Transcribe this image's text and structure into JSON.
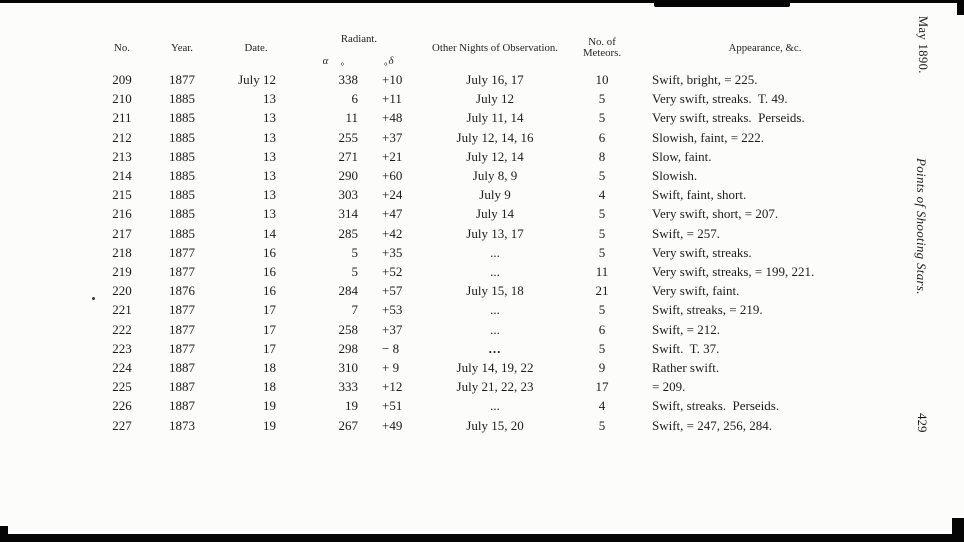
{
  "page": {
    "margin_date": "May 1890.",
    "margin_title": "Points of Shooting Stars.",
    "page_number": "429"
  },
  "table": {
    "degree_symbol": "°",
    "headers": {
      "no": "No.",
      "year": "Year.",
      "date": "Date.",
      "radiant": "Radiant.",
      "alpha": "α",
      "delta": "δ",
      "nights": "Other Nights of Observation.",
      "meteors_1": "No. of",
      "meteors_2": "Meteors.",
      "appearance": "Appearance, &c."
    },
    "rows": [
      {
        "no": "209",
        "year": "1877",
        "date": "July 12",
        "alpha": "338",
        "delta": "+10",
        "nights": "July 16, 17",
        "meteors": "10",
        "appearance": "Swift, bright, = 225.",
        "degree_marks": true
      },
      {
        "no": "210",
        "year": "1885",
        "date": "13",
        "alpha": "6",
        "delta": "+11",
        "nights": "July 12",
        "meteors": "5",
        "appearance": "Very swift, streaks.  T. 49."
      },
      {
        "no": "211",
        "year": "1885",
        "date": "13",
        "alpha": "11",
        "delta": "+48",
        "nights": "July 11, 14",
        "meteors": "5",
        "appearance": "Very swift, streaks.  Perseids."
      },
      {
        "no": "212",
        "year": "1885",
        "date": "13",
        "alpha": "255",
        "delta": "+37",
        "nights": "July 12, 14, 16",
        "meteors": "6",
        "appearance": "Slowish, faint, = 222."
      },
      {
        "no": "213",
        "year": "1885",
        "date": "13",
        "alpha": "271",
        "delta": "+21",
        "nights": "July 12, 14",
        "meteors": "8",
        "appearance": "Slow, faint."
      },
      {
        "no": "214",
        "year": "1885",
        "date": "13",
        "alpha": "290",
        "delta": "+60",
        "nights": "July 8, 9",
        "meteors": "5",
        "appearance": "Slowish."
      },
      {
        "no": "215",
        "year": "1885",
        "date": "13",
        "alpha": "303",
        "delta": "+24",
        "nights": "July 9",
        "meteors": "4",
        "appearance": "Swift, faint, short."
      },
      {
        "no": "216",
        "year": "1885",
        "date": "13",
        "alpha": "314",
        "delta": "+47",
        "nights": "July 14",
        "meteors": "5",
        "appearance": "Very swift, short, = 207."
      },
      {
        "no": "217",
        "year": "1885",
        "date": "14",
        "alpha": "285",
        "delta": "+42",
        "nights": "July 13, 17",
        "meteors": "5",
        "appearance": "Swift, = 257."
      },
      {
        "no": "218",
        "year": "1877",
        "date": "16",
        "alpha": "5",
        "delta": "+35",
        "nights": "...",
        "meteors": "5",
        "appearance": "Very swift, streaks."
      },
      {
        "no": "219",
        "year": "1877",
        "date": "16",
        "alpha": "5",
        "delta": "+52",
        "nights": "...",
        "meteors": "11",
        "appearance": "Very swift, streaks, = 199, 221."
      },
      {
        "no": "220",
        "year": "1876",
        "date": "16",
        "alpha": "284",
        "delta": "+57",
        "nights": "July 15, 18",
        "meteors": "21",
        "appearance": "Very swift, faint."
      },
      {
        "no": "221",
        "year": "1877",
        "date": "17",
        "alpha": "7",
        "delta": "+53",
        "nights": "...",
        "meteors": "5",
        "appearance": "Swift, streaks, = 219."
      },
      {
        "no": "222",
        "year": "1877",
        "date": "17",
        "alpha": "258",
        "delta": "+37",
        "nights": "...",
        "meteors": "6",
        "appearance": "Swift, = 212."
      },
      {
        "no": "223",
        "year": "1877",
        "date": "17",
        "alpha": "298",
        "delta": "− 8",
        "nights": "...",
        "meteors": "5",
        "appearance": "Swift.  T. 37.",
        "nights_bold": true
      },
      {
        "no": "224",
        "year": "1887",
        "date": "18",
        "alpha": "310",
        "delta": "+ 9",
        "nights": "July 14, 19, 22",
        "meteors": "9",
        "appearance": "Rather swift."
      },
      {
        "no": "225",
        "year": "1887",
        "date": "18",
        "alpha": "333",
        "delta": "+12",
        "nights": "July 21, 22, 23",
        "meteors": "17",
        "appearance": "= 209."
      },
      {
        "no": "226",
        "year": "1887",
        "date": "19",
        "alpha": "19",
        "delta": "+51",
        "nights": "...",
        "meteors": "4",
        "appearance": "Swift, streaks.  Perseids."
      },
      {
        "no": "227",
        "year": "1873",
        "date": "19",
        "alpha": "267",
        "delta": "+49",
        "nights": "July 15, 20",
        "meteors": "5",
        "appearance": "Swift, = 247, 256, 284."
      }
    ]
  }
}
